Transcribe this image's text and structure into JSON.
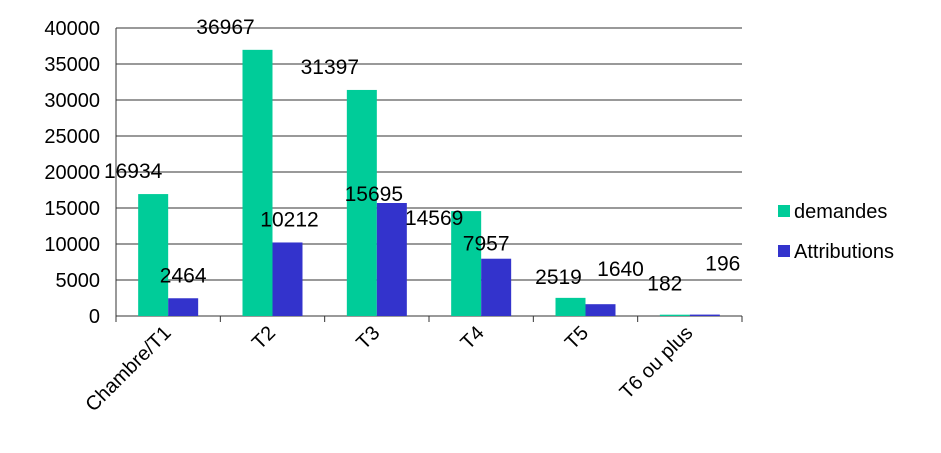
{
  "chart_data": {
    "type": "bar",
    "categories": [
      "Chambre/T1",
      "T2",
      "T3",
      "T4",
      "T5",
      "T6 ou plus"
    ],
    "series": [
      {
        "name": "demandes",
        "color": "#00CC99",
        "values": [
          16934,
          36967,
          31397,
          14569,
          2519,
          182
        ]
      },
      {
        "name": "Attributions",
        "color": "#3333CC",
        "values": [
          2464,
          10212,
          15695,
          7957,
          1640,
          196
        ]
      }
    ],
    "data_labels": {
      "demandes": [
        "16934",
        "36967",
        "31397",
        "14569",
        "2519",
        "182"
      ],
      "Attributions": [
        "2464",
        "10212",
        "15695",
        "7957",
        "1640",
        "196"
      ]
    },
    "y_ticks": [
      "0",
      "5000",
      "10000",
      "15000",
      "20000",
      "25000",
      "30000",
      "35000",
      "40000"
    ],
    "ylim": [
      0,
      40000
    ],
    "grid": true,
    "legend_position": "right"
  }
}
